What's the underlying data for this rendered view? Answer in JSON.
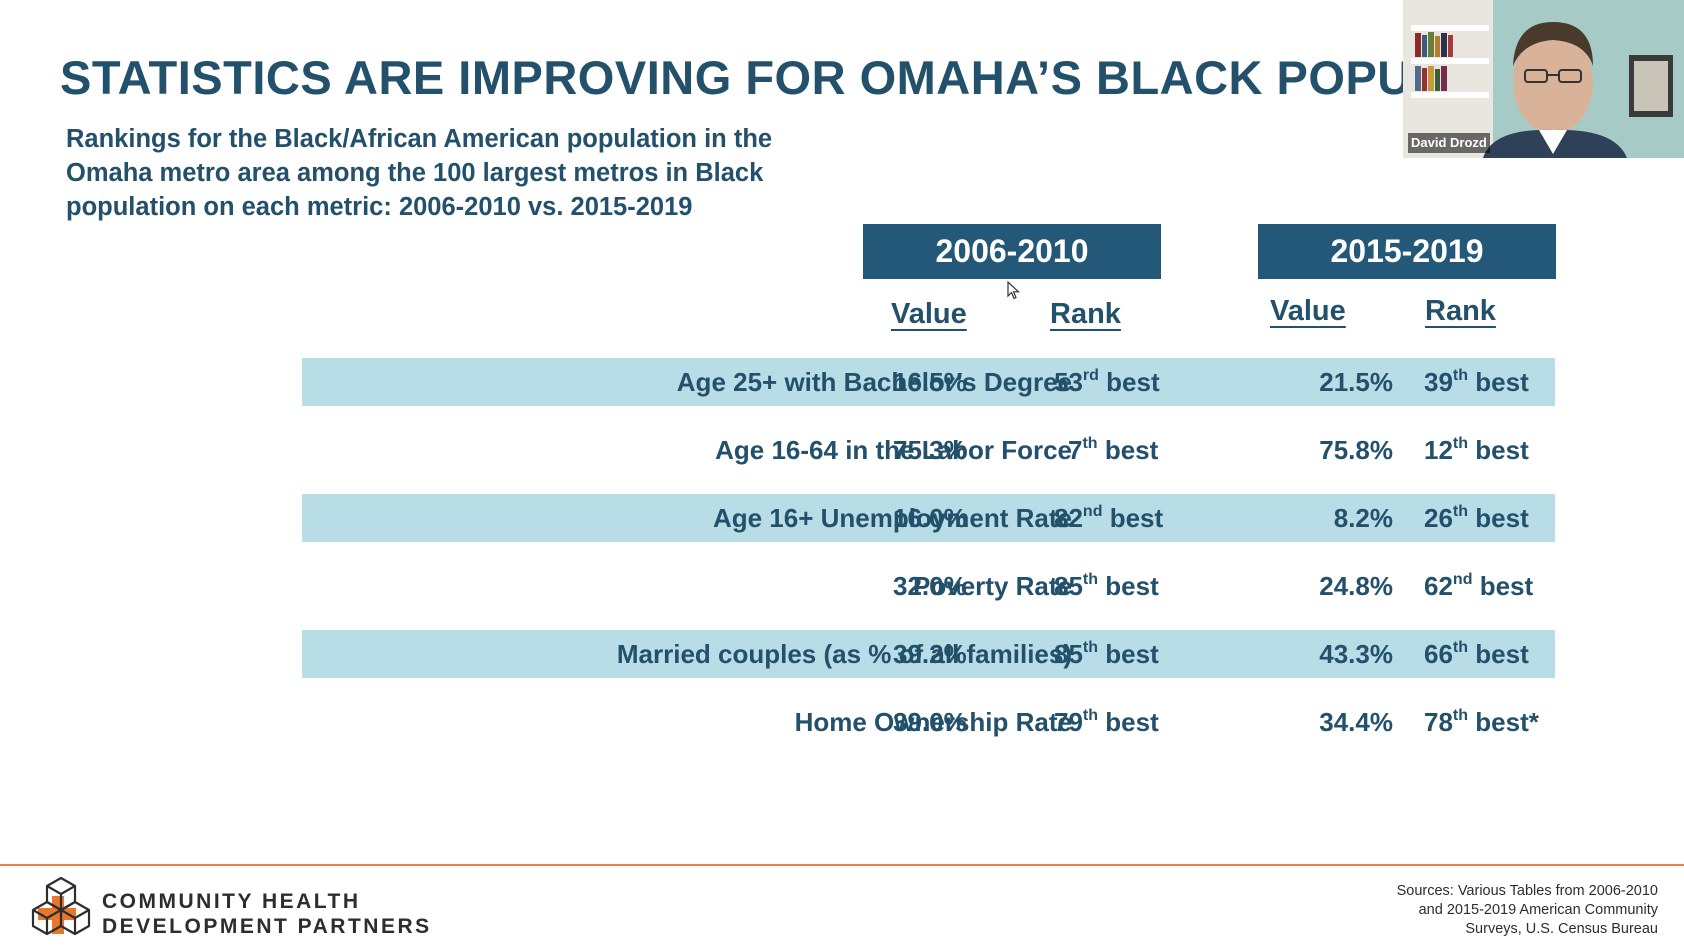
{
  "slide": {
    "title": "STATISTICS ARE IMPROVING FOR OMAHA’S BLACK POPULATION",
    "subtitle": "Rankings for the Black/African American population in the Omaha metro area among the 100 largest metros in Black population on each metric: 2006-2010 vs. 2015-2019"
  },
  "table": {
    "periods": [
      "2006-2010",
      "2015-2019"
    ],
    "col_value": "Value",
    "col_rank": "Rank",
    "rank_suffix": "best",
    "rows": [
      {
        "metric": "Age 25+ with Bachelor’s Degree",
        "v1": "16.5%",
        "r1_num": "53",
        "r1_ord": "rd",
        "v2": "21.5%",
        "r2_num": "39",
        "r2_ord": "th",
        "r2_note": ""
      },
      {
        "metric": "Age 16-64 in the Labor Force",
        "v1": "75.3%",
        "r1_num": "7",
        "r1_ord": "th",
        "v2": "75.8%",
        "r2_num": "12",
        "r2_ord": "th",
        "r2_note": ""
      },
      {
        "metric": "Age 16+ Unemployment Rate",
        "v1": "16.0%",
        "r1_num": "82",
        "r1_ord": "nd",
        "v2": "8.2%",
        "r2_num": "26",
        "r2_ord": "th",
        "r2_note": ""
      },
      {
        "metric": "Poverty Rate",
        "v1": "32.0%",
        "r1_num": "85",
        "r1_ord": "th",
        "v2": "24.8%",
        "r2_num": "62",
        "r2_ord": "nd",
        "r2_note": ""
      },
      {
        "metric": "Married couples (as % of all families)",
        "v1": "39.2%",
        "r1_num": "85",
        "r1_ord": "th",
        "v2": "43.3%",
        "r2_num": "66",
        "r2_ord": "th",
        "r2_note": ""
      },
      {
        "metric": "Home Ownership Rate",
        "v1": "39.0%",
        "r1_num": "79",
        "r1_ord": "th",
        "v2": "34.4%",
        "r2_num": "78",
        "r2_ord": "th",
        "r2_note": "*"
      }
    ]
  },
  "video": {
    "participant_name": "David Drozd"
  },
  "footer": {
    "logo_line1": "COMMUNITY HEALTH",
    "logo_line2": "DEVELOPMENT PARTNERS",
    "sources": [
      "Sources: Various Tables from 2006-2010",
      "and 2015-2019 American Community",
      "Surveys, U.S. Census Bureau"
    ]
  },
  "colors": {
    "title": "#23506b",
    "header_fill": "#245878",
    "row_shade": "#b9dde6",
    "footer_rule": "#e4823f",
    "logo_accent": "#e8772e"
  },
  "icons": [
    "cursor-arrow-icon",
    "chdp-logo-icon"
  ]
}
